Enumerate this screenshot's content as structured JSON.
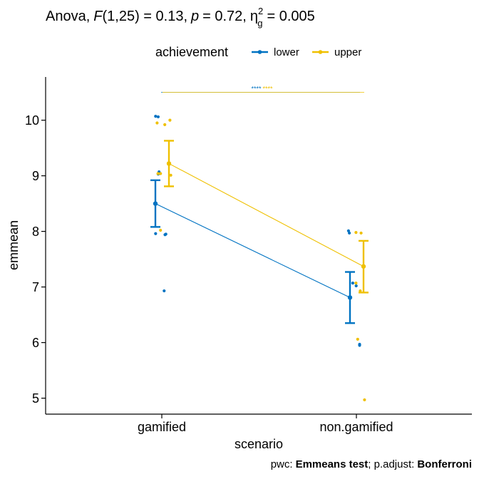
{
  "title": {
    "prefix": "Anova,",
    "stat_name": "F",
    "stat_df": "(1,25) = 0.13,",
    "p_name": "p",
    "p_value": "= 0.72,",
    "eta_name": "η",
    "eta_sup": "2",
    "eta_sub": "g",
    "eta_value": "= 0.005"
  },
  "caption": {
    "pwc_label": "pwc:",
    "pwc_method": "Emmeans test",
    "adjust_label": "; p.adjust:",
    "adjust_method": "Bonferroni"
  },
  "colors": {
    "lower": "#0073C2",
    "upper": "#EFC000"
  },
  "chart_data": {
    "type": "line",
    "xlabel": "scenario",
    "ylabel": "emmean",
    "categories": [
      "gamified",
      "non.gamified"
    ],
    "ylim": [
      4.7,
      10.8
    ],
    "yticks": [
      5,
      6,
      7,
      8,
      9,
      10
    ],
    "grid": false,
    "legend": {
      "title": "achievement",
      "placement": "top",
      "entries": [
        "lower",
        "upper"
      ]
    },
    "series": [
      {
        "name": "lower",
        "values": [
          8.5,
          6.81
        ],
        "ci_low": [
          8.08,
          6.35
        ],
        "ci_high": [
          8.92,
          7.27
        ],
        "points": [
          {
            "category": "gamified",
            "offset": -0.05,
            "y": 10.07
          },
          {
            "category": "gamified",
            "offset": -0.02,
            "y": 10.06
          },
          {
            "category": "gamified",
            "offset": -0.02,
            "y": 9.03
          },
          {
            "category": "gamified",
            "offset": -0.01,
            "y": 9.07
          },
          {
            "category": "gamified",
            "offset": -0.05,
            "y": 7.96
          },
          {
            "category": "gamified",
            "offset": 0.07,
            "y": 7.95
          },
          {
            "category": "gamified",
            "offset": 0.06,
            "y": 7.94
          },
          {
            "category": "gamified",
            "offset": 0.05,
            "y": 6.93
          },
          {
            "category": "non.gamified",
            "offset": -0.07,
            "y": 8.01
          },
          {
            "category": "non.gamified",
            "offset": -0.06,
            "y": 7.97
          },
          {
            "category": "non.gamified",
            "offset": -0.02,
            "y": 7.07
          },
          {
            "category": "non.gamified",
            "offset": 0.02,
            "y": 7.02
          },
          {
            "category": "non.gamified",
            "offset": 0.06,
            "y": 5.97
          },
          {
            "category": "non.gamified",
            "offset": 0.06,
            "y": 5.95
          }
        ]
      },
      {
        "name": "upper",
        "values": [
          9.22,
          7.37
        ],
        "ci_low": [
          8.81,
          6.9
        ],
        "ci_high": [
          9.63,
          7.83
        ],
        "points": [
          {
            "category": "gamified",
            "offset": -0.08,
            "y": 9.95
          },
          {
            "category": "gamified",
            "offset": 0.01,
            "y": 9.92
          },
          {
            "category": "gamified",
            "offset": 0.07,
            "y": 10.0
          },
          {
            "category": "gamified",
            "offset": -0.07,
            "y": 9.04
          },
          {
            "category": "gamified",
            "offset": -0.04,
            "y": 9.04
          },
          {
            "category": "gamified",
            "offset": 0.08,
            "y": 9.01
          },
          {
            "category": "gamified",
            "offset": -0.04,
            "y": 8.02
          },
          {
            "category": "non.gamified",
            "offset": -0.03,
            "y": 7.98
          },
          {
            "category": "non.gamified",
            "offset": 0.03,
            "y": 7.97
          },
          {
            "category": "non.gamified",
            "offset": -0.03,
            "y": 7.07
          },
          {
            "category": "non.gamified",
            "offset": 0.02,
            "y": 6.93
          },
          {
            "category": "non.gamified",
            "offset": -0.01,
            "y": 6.06
          },
          {
            "category": "non.gamified",
            "offset": 0.07,
            "y": 4.97
          }
        ]
      }
    ],
    "annotations": [
      {
        "type": "bracket",
        "from": "gamified",
        "to": "non.gamified",
        "y": 10.5,
        "label": "****",
        "series": "lower"
      },
      {
        "type": "bracket",
        "from": "gamified",
        "to": "non.gamified",
        "y": 10.5,
        "label": "****",
        "series": "upper"
      }
    ]
  }
}
